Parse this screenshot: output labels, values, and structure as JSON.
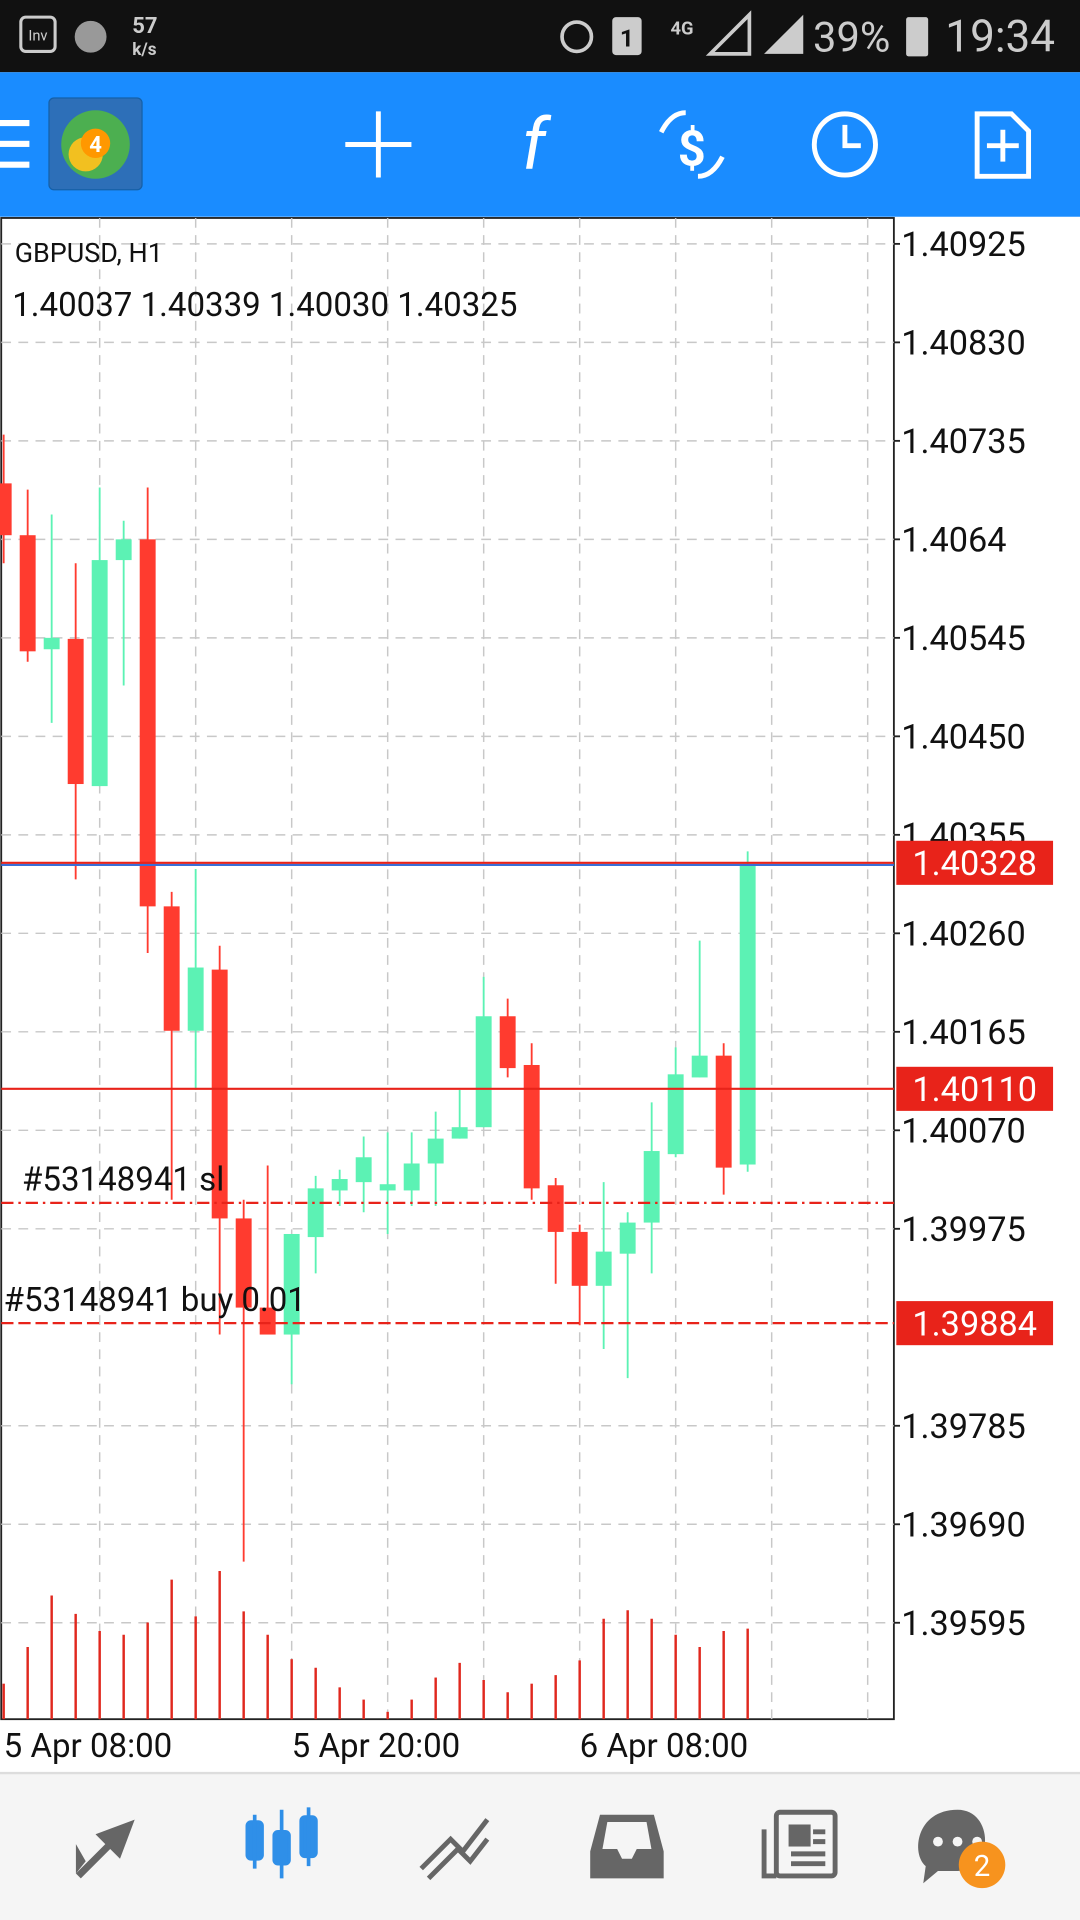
{
  "status_bar": {
    "speed": "57",
    "speed_unit": "k/s",
    "sim": "1",
    "network": "4G",
    "battery": "39%",
    "time": "19:34"
  },
  "toolbar": {
    "logo": "4"
  },
  "chart_data": {
    "type": "candlestick",
    "title": "GBPUSD, H1",
    "info": "1.40037 1.40339 1.40030 1.40325",
    "categories": [
      "5 Apr 08:00",
      null,
      null,
      null,
      null,
      null,
      null,
      null,
      null,
      null,
      null,
      null,
      "5 Apr 20:00",
      null,
      null,
      null,
      null,
      null,
      null,
      null,
      null,
      null,
      null,
      null,
      "6 Apr 08:00",
      null,
      null,
      null,
      null,
      null,
      null,
      null
    ],
    "open": [
      1.40694,
      1.40644,
      1.40534,
      1.40544,
      1.40402,
      1.4062,
      1.4064,
      1.40286,
      1.40166,
      1.40225,
      1.39985,
      1.39899,
      1.39873,
      1.39967,
      1.40012,
      1.4002,
      1.40012,
      1.40012,
      1.40038,
      1.40062,
      1.40073,
      1.4018,
      1.40133,
      1.40017,
      1.39972,
      1.3992,
      1.39951,
      1.39981,
      1.40047,
      1.40121,
      1.40142,
      1.40037
    ],
    "high": [
      1.40741,
      1.40688,
      1.40664,
      1.40617,
      1.4069,
      1.40658,
      1.4069,
      1.403,
      1.40322,
      1.40248,
      1.40003,
      1.40036,
      1.3997,
      1.40026,
      1.40032,
      1.40064,
      1.40068,
      1.40068,
      1.40088,
      1.40109,
      1.40218,
      1.40197,
      1.40154,
      1.40024,
      1.39979,
      1.4002,
      1.39991,
      1.40097,
      1.4015,
      1.40253,
      1.40154,
      1.40339
    ],
    "low": [
      1.40617,
      1.40522,
      1.40463,
      1.40312,
      1.40402,
      1.40499,
      1.40241,
      1.40003,
      1.40109,
      1.39873,
      1.39654,
      1.39873,
      1.39825,
      1.39932,
      1.39997,
      1.39991,
      1.3997,
      1.39997,
      1.39997,
      1.40062,
      1.40073,
      1.40121,
      1.40003,
      1.39922,
      1.39882,
      1.39859,
      1.39831,
      1.39932,
      1.40044,
      1.40121,
      1.40008,
      1.4003
    ],
    "close": [
      1.40644,
      1.40532,
      1.40545,
      1.40404,
      1.4062,
      1.4064,
      1.40286,
      1.40166,
      1.40227,
      1.39985,
      1.39899,
      1.39873,
      1.3997,
      1.40014,
      1.40023,
      1.40044,
      1.40018,
      1.40038,
      1.40062,
      1.40073,
      1.4018,
      1.4013,
      1.40014,
      1.39972,
      1.3992,
      1.39953,
      1.39981,
      1.4005,
      1.40124,
      1.40142,
      1.40034,
      1.40325
    ],
    "volume": [
      290,
      590,
      1010,
      860,
      720,
      690,
      790,
      1140,
      840,
      1210,
      880,
      690,
      490,
      420,
      260,
      160,
      60,
      160,
      340,
      460,
      320,
      220,
      290,
      360,
      480,
      820,
      890,
      820,
      690,
      590,
      720,
      740
    ],
    "up_color": "#5cf2b4",
    "down_color": "#ff3b2f",
    "volume_color": "#e0281e",
    "ylim": [
      1.39502,
      1.4095
    ],
    "yticks": [
      1.40925,
      {
        "value": 1.4083,
        "label": "1.40830"
      },
      1.40735,
      1.4064,
      1.40545,
      {
        "value": 1.4045,
        "label": "1.40450"
      },
      1.40355,
      {
        "value": 1.4026,
        "label": "1.40260"
      },
      1.40165,
      {
        "value": 1.4007,
        "label": "1.40070"
      },
      1.39975,
      1.39785,
      {
        "value": 1.3969,
        "label": "1.39690"
      },
      1.39595
    ],
    "grid": true,
    "levels": [
      {
        "value": 1.40326,
        "color": "#3a6fd8",
        "style": "solid",
        "tag": false
      },
      {
        "value": 1.40328,
        "color": "#e8231a",
        "style": "solid",
        "tag": true
      },
      {
        "value": 1.4011,
        "tag_label": "1.40110",
        "color": "#e8231a",
        "style": "solid",
        "tag": true
      },
      {
        "value": 1.4,
        "text": "#53148941 sl",
        "color": "#e8231a",
        "style": "dashdot",
        "tag": false
      },
      {
        "value": 1.39884,
        "text": "#53148941 buy 0.01",
        "color": "#e8231a",
        "style": "dashed",
        "tag": true
      }
    ]
  },
  "bottom_nav": {
    "badge": "2"
  }
}
